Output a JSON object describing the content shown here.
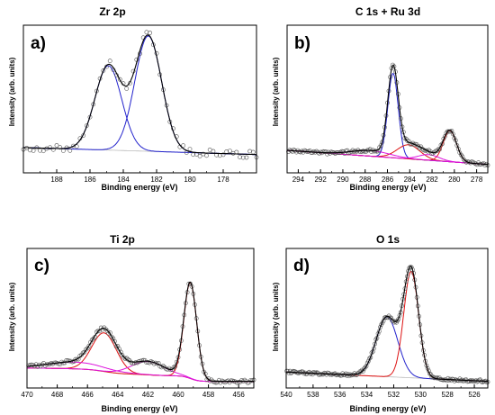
{
  "colors": {
    "envelope": "#000000",
    "data_marker": "#555555",
    "background_line": "#bbbbbb",
    "blue": "#2222cc",
    "red": "#dd1111",
    "magenta": "#dd11dd",
    "orange": "#ee6622"
  },
  "chart_data": [
    {
      "type": "line",
      "panel_label": "a)",
      "title": "Zr 2p",
      "xlabel": "Binding energy (eV)",
      "ylabel": "Intensity (arb. units)",
      "x_reversed": true,
      "xlim": [
        190,
        176
      ],
      "xticks": [
        188,
        186,
        184,
        182,
        180,
        178
      ],
      "ylim": [
        0,
        1.05
      ],
      "background": {
        "type": "linear",
        "start": [
          190,
          0.18
        ],
        "end": [
          176,
          0.13
        ]
      },
      "components": [
        {
          "center": 184.9,
          "fwhm": 1.9,
          "height": 0.6,
          "color": "blue"
        },
        {
          "center": 182.5,
          "fwhm": 1.9,
          "height": 0.82,
          "color": "blue"
        }
      ],
      "envelope": {
        "color": "envelope"
      },
      "data_markers": {
        "style": "open-circle",
        "step": 0.2,
        "noise": 0.025
      }
    },
    {
      "type": "line",
      "panel_label": "b)",
      "title": "C 1s + Ru 3d",
      "xlabel": "Binding energy (eV)",
      "ylabel": "Intensity (arb. units)",
      "x_reversed": true,
      "xlim": [
        295,
        277
      ],
      "xticks": [
        294,
        292,
        290,
        288,
        286,
        284,
        282,
        280,
        278
      ],
      "ylim": [
        0,
        1.05
      ],
      "background": {
        "type": "linear",
        "start": [
          295,
          0.16
        ],
        "end": [
          277,
          0.06
        ]
      },
      "components": [
        {
          "center": 285.5,
          "fwhm": 1.1,
          "height": 0.6,
          "color": "blue"
        },
        {
          "center": 284.1,
          "fwhm": 2.4,
          "height": 0.1,
          "color": "red"
        },
        {
          "center": 280.4,
          "fwhm": 1.4,
          "height": 0.22,
          "color": "red"
        },
        {
          "center": 287.5,
          "fwhm": 4.0,
          "height": 0.04,
          "color": "magenta"
        },
        {
          "center": 282.3,
          "fwhm": 2.2,
          "height": 0.04,
          "color": "magenta"
        }
      ],
      "envelope": {
        "color": "envelope"
      },
      "data_markers": {
        "style": "open-circle",
        "step": 0.12,
        "noise": 0.01
      }
    },
    {
      "type": "line",
      "panel_label": "c)",
      "title": "Ti 2p",
      "xlabel": "Binding energy (eV)",
      "ylabel": "Intensity (arb. units)",
      "x_reversed": true,
      "xlim": [
        470,
        455
      ],
      "xticks": [
        470,
        468,
        466,
        464,
        462,
        460,
        458,
        456
      ],
      "ylim": [
        0,
        1.05
      ],
      "background": {
        "type": "shirley",
        "high_end": [
          470,
          0.15
        ],
        "low_end": [
          455,
          0.05
        ]
      },
      "components": [
        {
          "center": 464.9,
          "fwhm": 1.9,
          "height": 0.29,
          "color": "red"
        },
        {
          "center": 459.2,
          "fwhm": 1.0,
          "height": 0.72,
          "color": "red"
        },
        {
          "center": 466.8,
          "fwhm": 4.5,
          "height": 0.05,
          "color": "magenta"
        },
        {
          "center": 462.0,
          "fwhm": 2.6,
          "height": 0.1,
          "color": "magenta"
        }
      ],
      "envelope": {
        "color": "envelope"
      },
      "data_markers": {
        "style": "open-circle",
        "step": 0.1,
        "noise": 0.012
      }
    },
    {
      "type": "line",
      "panel_label": "d)",
      "title": "O 1s",
      "xlabel": "Binding energy (eV)",
      "ylabel": "Intensity (arb. units)",
      "x_reversed": true,
      "xlim": [
        540,
        525
      ],
      "xticks": [
        540,
        538,
        536,
        534,
        532,
        530,
        528,
        526
      ],
      "ylim": [
        0,
        1.05
      ],
      "background": {
        "type": "linear",
        "start": [
          540,
          0.12
        ],
        "end": [
          525,
          0.05
        ]
      },
      "components": [
        {
          "center": 532.5,
          "fwhm": 1.9,
          "height": 0.45,
          "color": "blue"
        },
        {
          "center": 530.7,
          "fwhm": 1.3,
          "height": 0.8,
          "color": "red"
        }
      ],
      "envelope": {
        "color": "envelope"
      },
      "data_markers": {
        "style": "open-circle",
        "step": 0.08,
        "noise": 0.01
      }
    }
  ]
}
